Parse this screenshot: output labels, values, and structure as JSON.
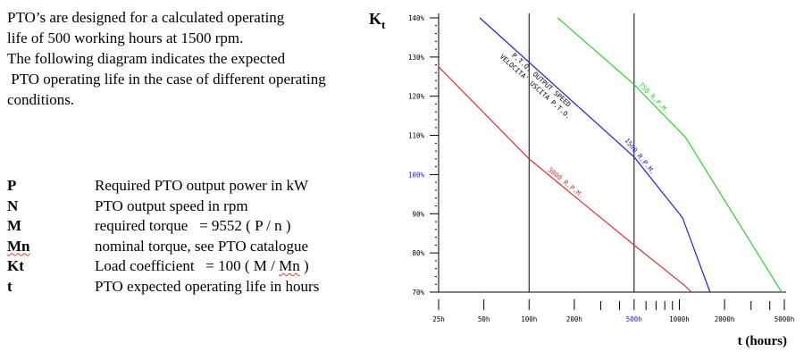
{
  "intro": {
    "lines": [
      "PTO’s are designed for a calculated operating",
      "life of 500 working hours at 1500 rpm.",
      "The following diagram indicates the expected",
      " PTO operating life in the case of different operating",
      "conditions."
    ]
  },
  "definitions": [
    {
      "symbol": "P",
      "text": "Required PTO output power in kW"
    },
    {
      "symbol": "N",
      "text": "PTO output speed in rpm"
    },
    {
      "symbol": "M",
      "text": "required torque   = 9552 ( P / n )"
    },
    {
      "symbol": "Mn",
      "text": "nominal torque, see PTO catalogue"
    },
    {
      "symbol": "Kt",
      "text_before": "Load coefficient   = 100 ( M / ",
      "text_underlined": "Mn",
      "text_after": " )"
    },
    {
      "symbol": "t",
      "text": "PTO expected operating life in hours"
    }
  ],
  "chart_data": {
    "type": "line",
    "ylabel_main": "K",
    "ylabel_sub": "t",
    "xlabel": "t (hours)",
    "x_scale": "log",
    "xlim": [
      25,
      5000
    ],
    "ylim": [
      70,
      140
    ],
    "x_tick_labels": [
      {
        "value": 25,
        "label": "25h"
      },
      {
        "value": 50,
        "label": "50h"
      },
      {
        "value": 100,
        "label": "100h"
      },
      {
        "value": 200,
        "label": "200h"
      },
      {
        "value": 500,
        "label": "500h",
        "color": "#2222ee"
      },
      {
        "value": 1000,
        "label": "1000h"
      },
      {
        "value": 2000,
        "label": "2000h"
      },
      {
        "value": 5000,
        "label": "5000h"
      }
    ],
    "x_minor_ticks": [
      300,
      400,
      600,
      700,
      800,
      900,
      3000,
      4000
    ],
    "y_tick_labels": [
      {
        "value": 70,
        "label": "70%"
      },
      {
        "value": 80,
        "label": "80%"
      },
      {
        "value": 90,
        "label": "90%"
      },
      {
        "value": 100,
        "label": "100%",
        "color": "#2222ee"
      },
      {
        "value": 110,
        "label": "110%"
      },
      {
        "value": 120,
        "label": "120%"
      },
      {
        "value": 130,
        "label": "130%"
      },
      {
        "value": 140,
        "label": "140%"
      }
    ],
    "y_minor_ticks": [
      72,
      74,
      76,
      78,
      82,
      84,
      86,
      88,
      92,
      94,
      96,
      98,
      102,
      104,
      106,
      108,
      112,
      114,
      116,
      118,
      122,
      124,
      126,
      128,
      132,
      134,
      136,
      138
    ],
    "reference_lines_x": [
      100,
      500
    ],
    "series": [
      {
        "name": "3000 R.P.M.",
        "color": "#e03030",
        "points": [
          [
            25,
            127.5
          ],
          [
            100,
            104
          ],
          [
            500,
            82
          ],
          [
            1100,
            71.5
          ],
          [
            1200,
            70
          ]
        ]
      },
      {
        "name": "1500 R.P.M.",
        "color": "#2020e0",
        "points": [
          [
            47,
            140
          ],
          [
            500,
            104.5
          ],
          [
            1050,
            89
          ],
          [
            1600,
            70
          ]
        ]
      },
      {
        "name": "750 R.P.M.",
        "color": "#30d030",
        "points": [
          [
            155,
            140
          ],
          [
            500,
            123
          ],
          [
            1100,
            109.5
          ],
          [
            4800,
            70
          ]
        ]
      }
    ],
    "annotation": "P.T.O. OUTPUT SPEED\nVELOCITA' USCITA P.T.O."
  }
}
